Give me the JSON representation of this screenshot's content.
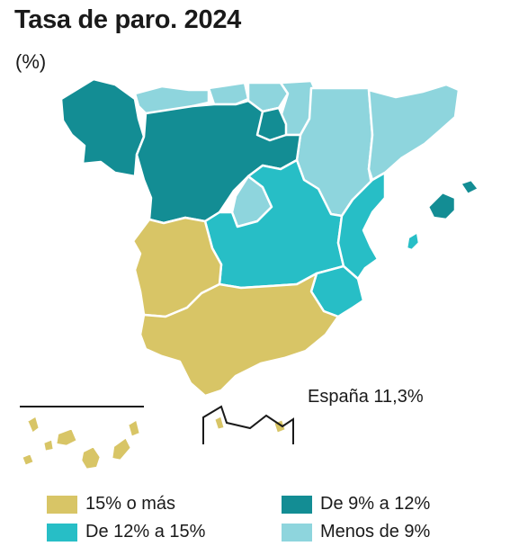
{
  "title": "Tasa de paro. 2024",
  "subtitle": "(%)",
  "national_total": "España 11,3%",
  "colors": {
    "high": "#d8c566",
    "mid_high": "#27bec6",
    "mid_low": "#138d94",
    "low": "#8ed5dd"
  },
  "legend": [
    {
      "label": "15% o más",
      "color": "#d8c566"
    },
    {
      "label": "De 9% a 12%",
      "color": "#138d94"
    },
    {
      "label": "De 12% a 15%",
      "color": "#27bec6"
    },
    {
      "label": "Menos de 9%",
      "color": "#8ed5dd"
    }
  ],
  "regions": [
    {
      "category": "mid_low"
    },
    {
      "category": "low"
    },
    {
      "category": "low"
    },
    {
      "category": "low"
    },
    {
      "category": "low"
    },
    {
      "category": "low"
    },
    {
      "category": "low"
    },
    {
      "category": "mid_low"
    },
    {
      "category": "mid_low"
    },
    {
      "category": "mid_low"
    },
    {
      "category": "low"
    },
    {
      "category": "mid_high"
    },
    {
      "category": "mid_high"
    },
    {
      "category": "mid_high"
    },
    {
      "category": "high"
    },
    {
      "category": "high"
    },
    {
      "category": "mid_low"
    },
    {
      "category": "high"
    },
    {
      "category": "mid_high"
    },
    {
      "category": "high"
    },
    {
      "category": "high"
    }
  ]
}
